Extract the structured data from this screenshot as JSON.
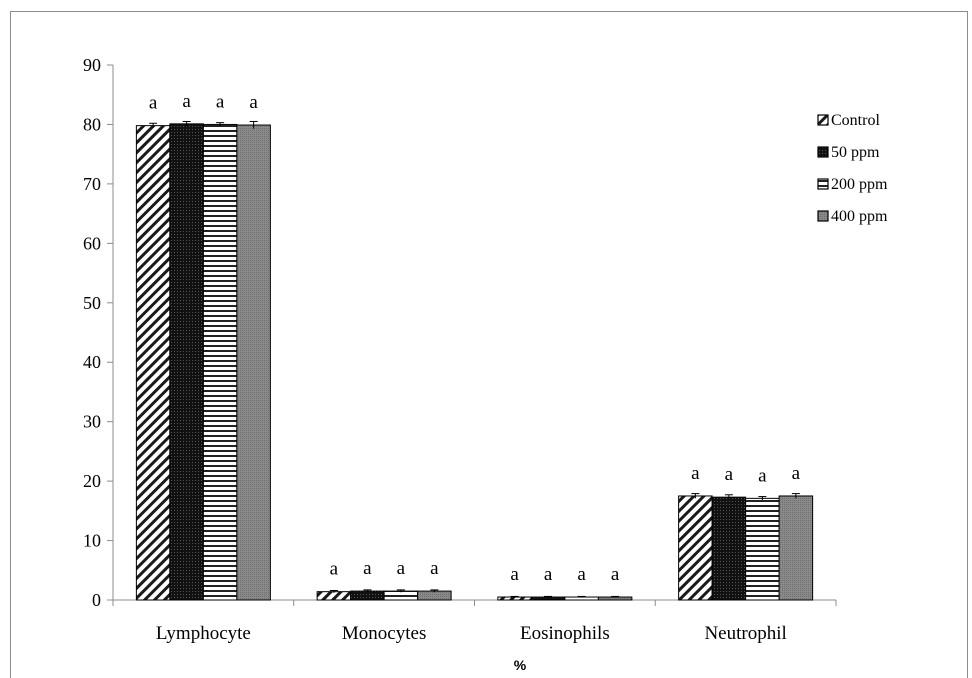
{
  "chart_data": {
    "type": "bar",
    "categories": [
      "Lymphocyte",
      "Monocytes",
      "Eosinophils",
      "Neutrophil"
    ],
    "series": [
      {
        "name": "Control",
        "values": [
          79.8,
          1.4,
          0.5,
          17.5
        ],
        "errors": [
          0.4,
          0.2,
          0.1,
          0.4
        ],
        "letters": [
          "a",
          "a",
          "a",
          "a"
        ],
        "pattern": "diagonal"
      },
      {
        "name": "50 ppm",
        "values": [
          80.1,
          1.5,
          0.5,
          17.3
        ],
        "errors": [
          0.4,
          0.2,
          0.1,
          0.4
        ],
        "letters": [
          "a",
          "a",
          "a",
          "a"
        ],
        "pattern": "dark"
      },
      {
        "name": "200 ppm",
        "values": [
          80.0,
          1.5,
          0.5,
          17.1
        ],
        "errors": [
          0.3,
          0.2,
          0.1,
          0.3
        ],
        "letters": [
          "a",
          "a",
          "a",
          "a"
        ],
        "pattern": "horizontal"
      },
      {
        "name": "400 ppm",
        "values": [
          79.9,
          1.5,
          0.5,
          17.5
        ],
        "errors": [
          0.6,
          0.2,
          0.1,
          0.4
        ],
        "letters": [
          "a",
          "a",
          "a",
          "a"
        ],
        "pattern": "gray"
      }
    ],
    "ylim": [
      0,
      90
    ],
    "yticks": [
      0,
      10,
      20,
      30,
      40,
      50,
      60,
      70,
      80,
      90
    ],
    "xlabel": "%",
    "ylabel": "",
    "legend_position": "top-right",
    "grid": false
  }
}
